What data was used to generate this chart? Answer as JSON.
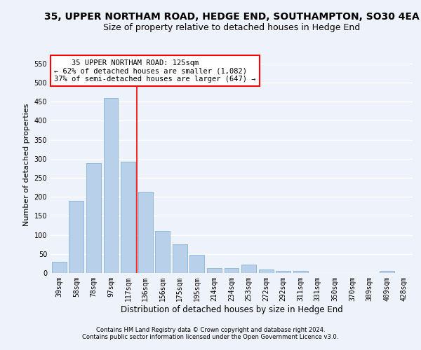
{
  "title1": "35, UPPER NORTHAM ROAD, HEDGE END, SOUTHAMPTON, SO30 4EA",
  "title2": "Size of property relative to detached houses in Hedge End",
  "xlabel": "Distribution of detached houses by size in Hedge End",
  "ylabel": "Number of detached properties",
  "categories": [
    "39sqm",
    "58sqm",
    "78sqm",
    "97sqm",
    "117sqm",
    "136sqm",
    "156sqm",
    "175sqm",
    "195sqm",
    "214sqm",
    "234sqm",
    "253sqm",
    "272sqm",
    "292sqm",
    "311sqm",
    "331sqm",
    "350sqm",
    "370sqm",
    "389sqm",
    "409sqm",
    "428sqm"
  ],
  "values": [
    30,
    190,
    288,
    460,
    292,
    213,
    110,
    75,
    47,
    13,
    13,
    22,
    10,
    5,
    5,
    0,
    0,
    0,
    0,
    5,
    0
  ],
  "bar_color": "#b8d0ea",
  "bar_edge_color": "#7aaad0",
  "vline_x": 4.5,
  "vline_color": "red",
  "annotation_line1": "    35 UPPER NORTHAM ROAD: 125sqm",
  "annotation_line2": "← 62% of detached houses are smaller (1,082)",
  "annotation_line3": "37% of semi-detached houses are larger (647) →",
  "annotation_box_color": "white",
  "annotation_box_edge": "red",
  "ylim": [
    0,
    570
  ],
  "yticks": [
    0,
    50,
    100,
    150,
    200,
    250,
    300,
    350,
    400,
    450,
    500,
    550
  ],
  "footer1": "Contains HM Land Registry data © Crown copyright and database right 2024.",
  "footer2": "Contains public sector information licensed under the Open Government Licence v3.0.",
  "bg_color": "#eef2fa",
  "grid_color": "#ffffff",
  "title1_fontsize": 10,
  "title2_fontsize": 9,
  "xlabel_fontsize": 8.5,
  "ylabel_fontsize": 8,
  "tick_fontsize": 7,
  "annotation_fontsize": 7.5,
  "footer_fontsize": 6
}
